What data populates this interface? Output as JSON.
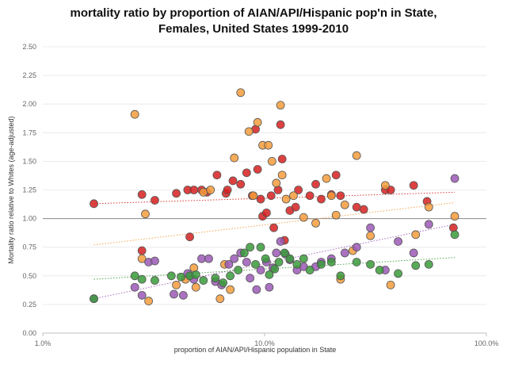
{
  "chart_data": {
    "type": "scatter",
    "title": "mortality ratio by proportion of AIAN/API/Hispanic pop'n in State,",
    "subtitle": "Females, United States 1999-2010",
    "xlabel": "proportion of AIAN/API/Hispanic population in State",
    "ylabel": "Mortality ratio relative to Whites (age-adjusted)",
    "xscale": "log",
    "xlim": [
      1.0,
      100.0
    ],
    "ylim": [
      0.0,
      2.5
    ],
    "xticks": [
      "1.0%",
      "10.0%",
      "100.0%"
    ],
    "yticks": [
      "0.00",
      "0.25",
      "0.50",
      "0.75",
      "1.00",
      "1.25",
      "1.50",
      "1.75",
      "2.00",
      "2.25",
      "2.50"
    ],
    "reference_line": 1.0,
    "series": [
      {
        "name": "red",
        "color": "#d62020",
        "trend": [
          1.13,
          1.23
        ],
        "points": [
          [
            1.7,
            1.13
          ],
          [
            2.8,
            0.72
          ],
          [
            2.8,
            1.21
          ],
          [
            3.2,
            1.16
          ],
          [
            4.0,
            1.22
          ],
          [
            4.5,
            1.25
          ],
          [
            4.6,
            0.84
          ],
          [
            4.8,
            1.25
          ],
          [
            5.2,
            1.25
          ],
          [
            5.5,
            1.23
          ],
          [
            6.1,
            1.38
          ],
          [
            6.7,
            1.22
          ],
          [
            6.8,
            1.25
          ],
          [
            7.2,
            1.33
          ],
          [
            7.8,
            1.3
          ],
          [
            8.3,
            1.4
          ],
          [
            8.8,
            1.2
          ],
          [
            9.1,
            1.78
          ],
          [
            9.3,
            1.43
          ],
          [
            9.6,
            1.17
          ],
          [
            9.8,
            1.02
          ],
          [
            10.2,
            1.05
          ],
          [
            10.7,
            1.2
          ],
          [
            11.0,
            0.92
          ],
          [
            11.5,
            1.25
          ],
          [
            11.8,
            1.82
          ],
          [
            12.0,
            1.52
          ],
          [
            12.3,
            0.81
          ],
          [
            13.0,
            1.07
          ],
          [
            13.8,
            1.1
          ],
          [
            14.2,
            1.25
          ],
          [
            16.0,
            1.2
          ],
          [
            17.0,
            1.3
          ],
          [
            18.0,
            1.17
          ],
          [
            20.0,
            1.21
          ],
          [
            21.0,
            1.38
          ],
          [
            22.0,
            1.2
          ],
          [
            26.0,
            1.1
          ],
          [
            28.0,
            1.08
          ],
          [
            35.0,
            1.25
          ],
          [
            37.0,
            1.25
          ],
          [
            47.0,
            1.29
          ],
          [
            54.0,
            1.15
          ],
          [
            71.0,
            0.92
          ]
        ]
      },
      {
        "name": "orange",
        "color": "#f39c3c",
        "trend": [
          0.77,
          1.14
        ],
        "points": [
          [
            2.6,
            1.91
          ],
          [
            2.8,
            0.65
          ],
          [
            2.9,
            1.04
          ],
          [
            3.0,
            0.28
          ],
          [
            4.0,
            0.42
          ],
          [
            4.4,
            0.47
          ],
          [
            4.8,
            0.57
          ],
          [
            4.9,
            0.4
          ],
          [
            5.3,
            1.23
          ],
          [
            5.7,
            1.25
          ],
          [
            6.3,
            0.3
          ],
          [
            6.6,
            0.6
          ],
          [
            7.0,
            0.38
          ],
          [
            7.3,
            1.53
          ],
          [
            7.8,
            2.1
          ],
          [
            8.5,
            1.76
          ],
          [
            8.9,
            1.2
          ],
          [
            9.3,
            1.84
          ],
          [
            9.8,
            1.64
          ],
          [
            10.4,
            1.64
          ],
          [
            10.8,
            1.5
          ],
          [
            11.3,
            1.31
          ],
          [
            11.8,
            1.99
          ],
          [
            12.0,
            1.38
          ],
          [
            12.5,
            1.17
          ],
          [
            13.5,
            1.2
          ],
          [
            15.0,
            1.01
          ],
          [
            17.0,
            0.96
          ],
          [
            19.0,
            1.35
          ],
          [
            20.0,
            1.2
          ],
          [
            21.0,
            1.03
          ],
          [
            22.0,
            0.47
          ],
          [
            23.0,
            1.12
          ],
          [
            25.0,
            0.72
          ],
          [
            26.0,
            1.55
          ],
          [
            30.0,
            0.85
          ],
          [
            35.0,
            1.29
          ],
          [
            37.0,
            0.42
          ],
          [
            48.0,
            0.86
          ],
          [
            55.0,
            1.1
          ],
          [
            72.0,
            1.02
          ]
        ]
      },
      {
        "name": "purple",
        "color": "#9b59b6",
        "trend": [
          0.3,
          0.95
        ],
        "points": [
          [
            1.7,
            0.3
          ],
          [
            2.6,
            0.4
          ],
          [
            2.8,
            0.33
          ],
          [
            3.0,
            0.62
          ],
          [
            3.2,
            0.63
          ],
          [
            3.9,
            0.34
          ],
          [
            4.3,
            0.33
          ],
          [
            4.5,
            0.52
          ],
          [
            4.8,
            0.47
          ],
          [
            5.2,
            0.65
          ],
          [
            5.6,
            0.65
          ],
          [
            6.0,
            0.45
          ],
          [
            6.4,
            0.42
          ],
          [
            6.9,
            0.6
          ],
          [
            7.3,
            0.65
          ],
          [
            7.8,
            0.7
          ],
          [
            8.3,
            0.62
          ],
          [
            8.6,
            0.48
          ],
          [
            9.2,
            0.38
          ],
          [
            9.6,
            0.55
          ],
          [
            10.2,
            0.62
          ],
          [
            10.5,
            0.4
          ],
          [
            10.9,
            0.57
          ],
          [
            11.3,
            0.7
          ],
          [
            11.8,
            0.8
          ],
          [
            12.4,
            0.69
          ],
          [
            13.0,
            0.64
          ],
          [
            14.0,
            0.55
          ],
          [
            15.0,
            0.58
          ],
          [
            17.0,
            0.58
          ],
          [
            18.0,
            0.62
          ],
          [
            20.0,
            0.65
          ],
          [
            23.0,
            0.7
          ],
          [
            26.0,
            0.75
          ],
          [
            30.0,
            0.92
          ],
          [
            35.0,
            0.55
          ],
          [
            40.0,
            0.8
          ],
          [
            47.0,
            0.7
          ],
          [
            55.0,
            0.95
          ],
          [
            72.0,
            1.35
          ]
        ]
      },
      {
        "name": "green",
        "color": "#3a9b3a",
        "trend": [
          0.47,
          0.66
        ],
        "points": [
          [
            1.7,
            0.3
          ],
          [
            2.6,
            0.5
          ],
          [
            2.8,
            0.47
          ],
          [
            3.2,
            0.46
          ],
          [
            3.8,
            0.5
          ],
          [
            4.2,
            0.49
          ],
          [
            4.6,
            0.5
          ],
          [
            4.9,
            0.51
          ],
          [
            5.3,
            0.46
          ],
          [
            6.0,
            0.48
          ],
          [
            6.5,
            0.44
          ],
          [
            7.0,
            0.5
          ],
          [
            7.6,
            0.55
          ],
          [
            8.1,
            0.7
          ],
          [
            8.6,
            0.75
          ],
          [
            9.1,
            0.6
          ],
          [
            9.6,
            0.75
          ],
          [
            10.1,
            0.65
          ],
          [
            10.5,
            0.51
          ],
          [
            11.1,
            0.56
          ],
          [
            11.6,
            0.62
          ],
          [
            12.3,
            0.7
          ],
          [
            13.0,
            0.65
          ],
          [
            14.0,
            0.6
          ],
          [
            15.0,
            0.65
          ],
          [
            16.0,
            0.55
          ],
          [
            18.0,
            0.6
          ],
          [
            20.0,
            0.62
          ],
          [
            22.0,
            0.5
          ],
          [
            26.0,
            0.62
          ],
          [
            30.0,
            0.6
          ],
          [
            33.0,
            0.55
          ],
          [
            40.0,
            0.52
          ],
          [
            48.0,
            0.59
          ],
          [
            55.0,
            0.6
          ],
          [
            72.0,
            0.86
          ]
        ]
      }
    ]
  }
}
